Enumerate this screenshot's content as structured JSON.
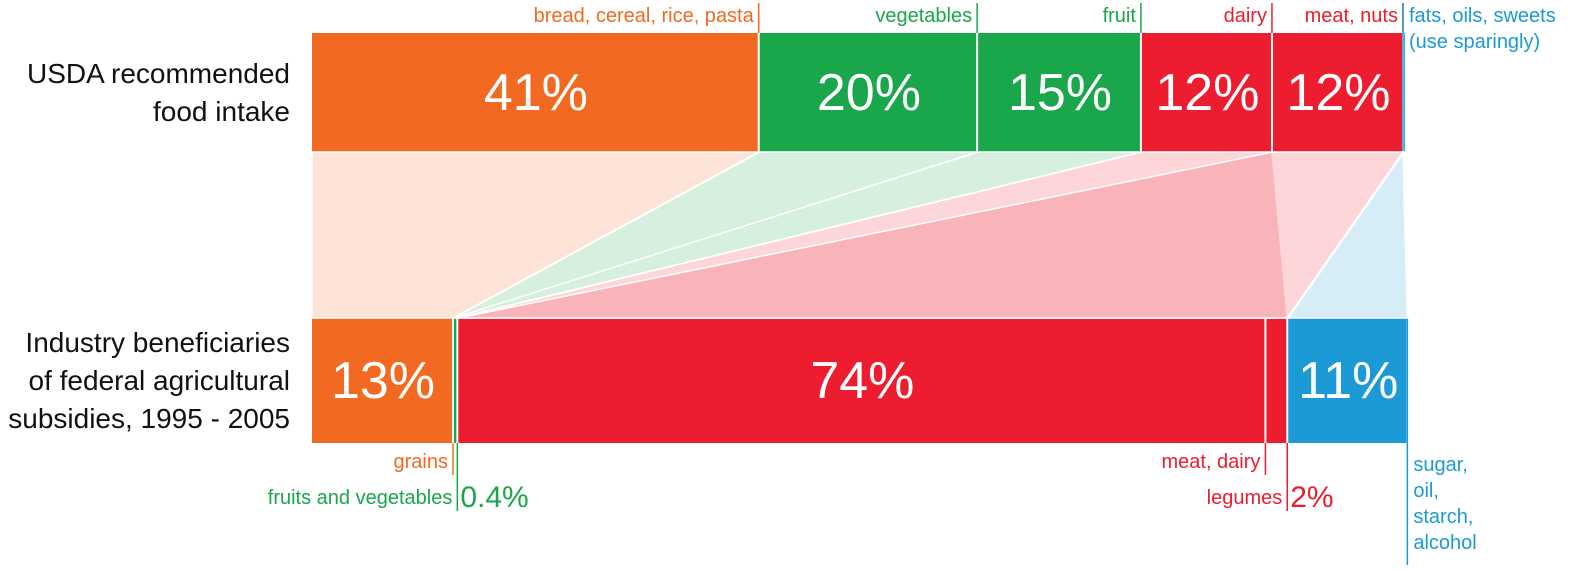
{
  "chart_data": {
    "type": "bar",
    "orientation": "horizontal",
    "stacked": true,
    "xlim": [
      0,
      100
    ],
    "bars": [
      {
        "label": "USDA recommended\nfood intake",
        "segments": [
          {
            "name": "bread, cereal, rice, pasta",
            "color": "#f26a22",
            "value": 41,
            "value_label": "41%"
          },
          {
            "name": "vegetables",
            "color": "#1aa64a",
            "value": 20,
            "value_label": "20%"
          },
          {
            "name": "fruit",
            "color": "#1aa64a",
            "value": 15,
            "value_label": "15%"
          },
          {
            "name": "dairy",
            "color": "#ed1c2e",
            "value": 12,
            "value_label": "12%"
          },
          {
            "name": "meat, nuts",
            "color": "#ed1c2e",
            "value": 12,
            "value_label": "12%"
          },
          {
            "name": "fats, oils, sweets\n(use sparingly)",
            "color": "#1c9ad6",
            "value": null
          }
        ]
      },
      {
        "label": "Industry beneficiaries\nof federal agricultural\nsubsidies, 1995 - 2005",
        "segments": [
          {
            "name": "grains",
            "color": "#f26a22",
            "value": 13,
            "value_label": "13%"
          },
          {
            "name": "fruits and vegetables",
            "color": "#1aa64a",
            "value": 0.4,
            "value_label": "0.4%"
          },
          {
            "name": "meat, dairy",
            "color": "#ed1c2e",
            "value": 74,
            "value_label": "74%"
          },
          {
            "name": "legumes",
            "color": "#ed1c2e",
            "value": 2,
            "value_label": "2%"
          },
          {
            "name": "sugar,\noil,\nstarch,\nalcohol",
            "color": "#1c9ad6",
            "value": 11,
            "value_label": "11%"
          }
        ]
      }
    ]
  }
}
